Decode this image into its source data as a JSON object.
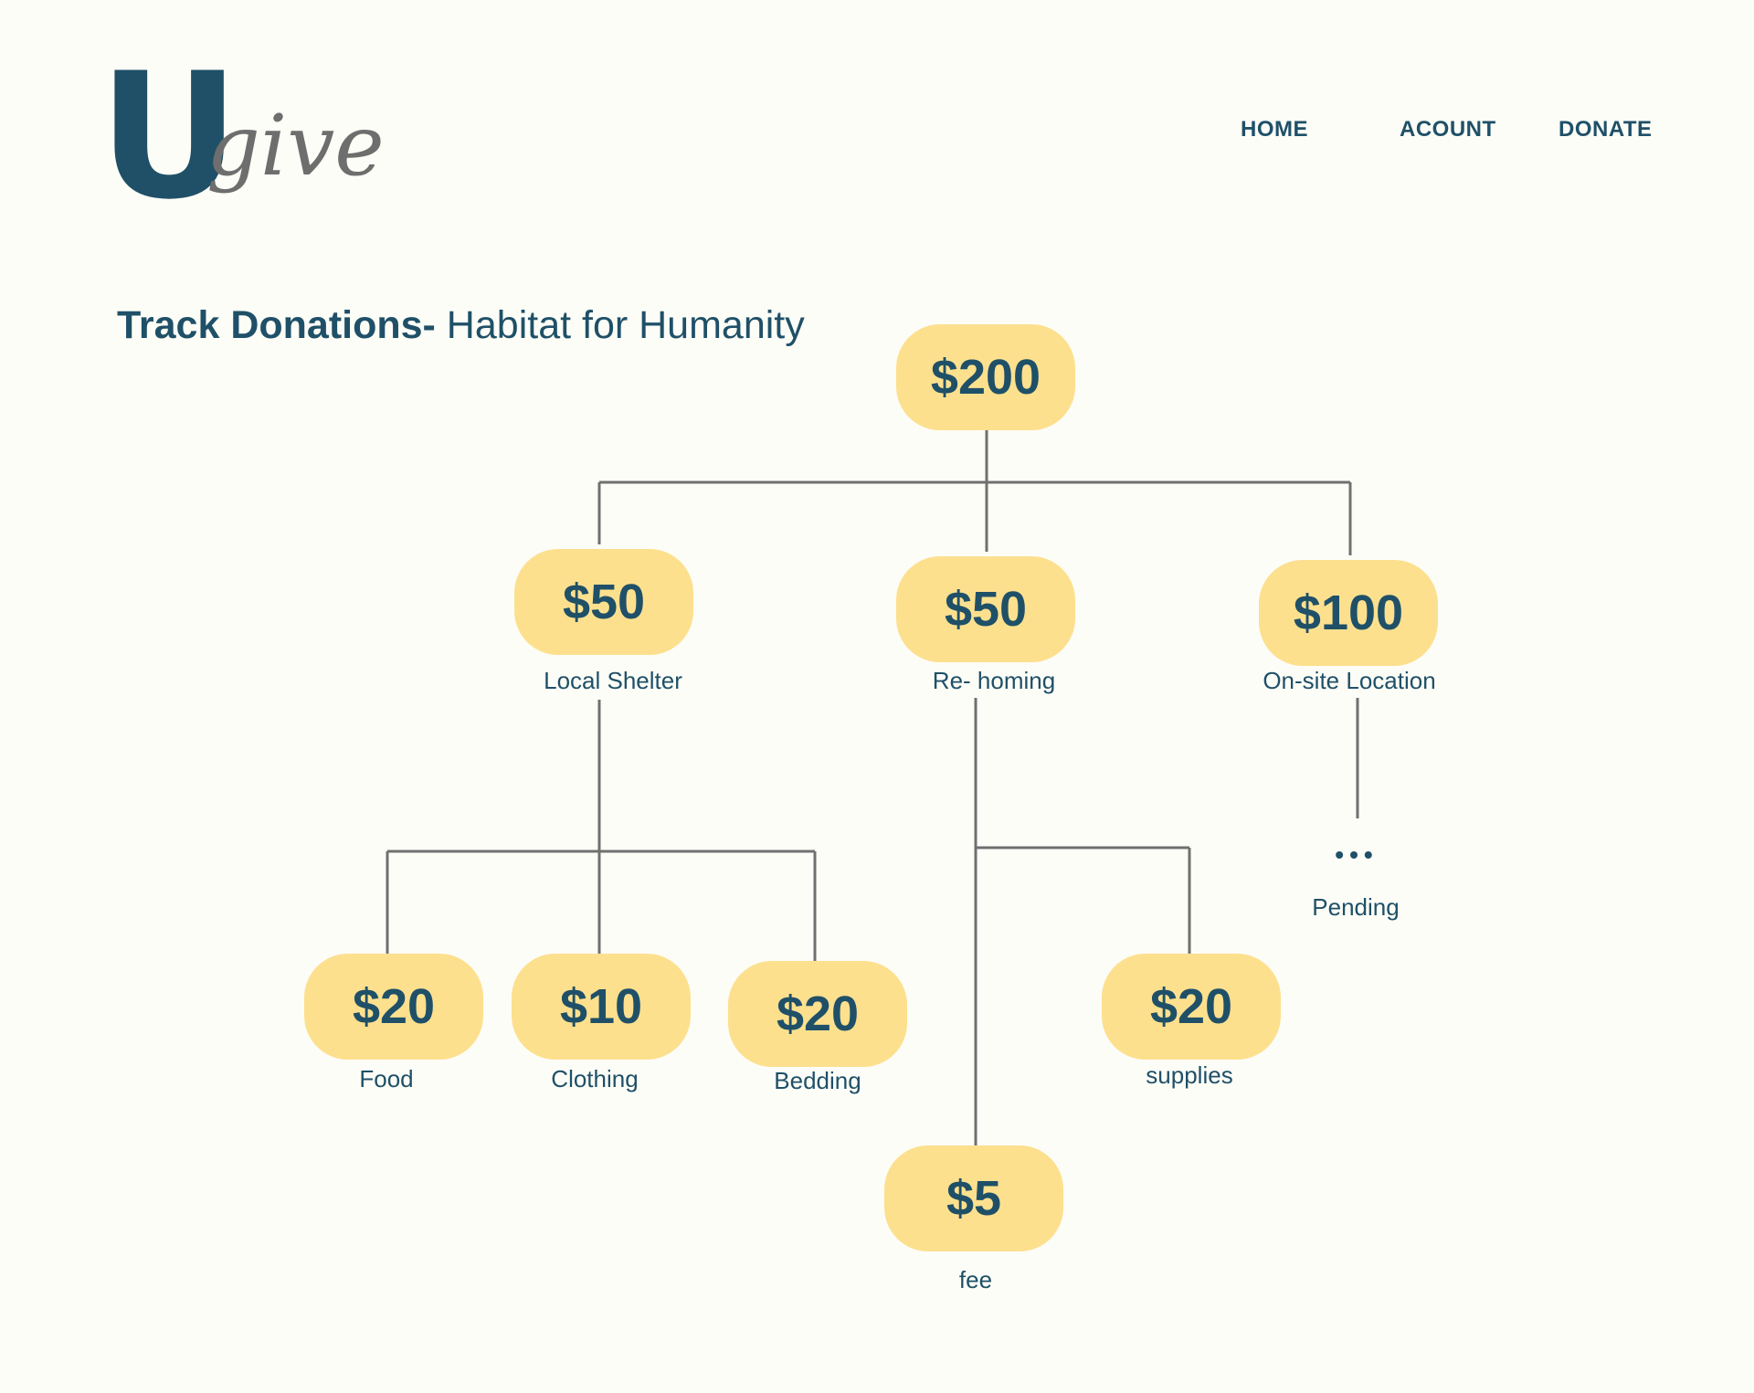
{
  "logo": {
    "letter": "U",
    "word": "give"
  },
  "nav": {
    "home": "HOME",
    "account": "ACOUNT",
    "donate": "DONATE"
  },
  "page": {
    "title_bold": "Track Donations-",
    "title_rest": " Habitat for Humanity"
  },
  "tree": {
    "root": {
      "amount": "$200"
    },
    "shelter": {
      "amount": "$50",
      "label": "Local Shelter"
    },
    "rehoming": {
      "amount": "$50",
      "label": "Re- homing"
    },
    "onsite": {
      "amount": "$100",
      "label": "On-site Location"
    },
    "food": {
      "amount": "$20",
      "label": "Food"
    },
    "clothing": {
      "amount": "$10",
      "label": "Clothing"
    },
    "bedding": {
      "amount": "$20",
      "label": "Bedding"
    },
    "supplies": {
      "amount": "$20",
      "label": "supplies"
    },
    "fee": {
      "amount": "$5",
      "label": "fee"
    },
    "pending": {
      "dots": "•••",
      "label": "Pending"
    }
  },
  "colors": {
    "brand": "#1f5068",
    "node_fill": "#fde08e",
    "line": "#707070",
    "background": "#fdfdf7"
  }
}
